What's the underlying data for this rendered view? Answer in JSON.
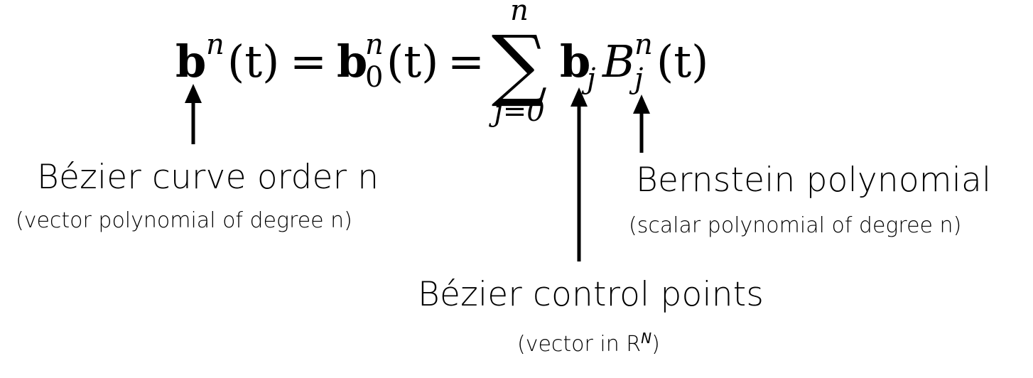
{
  "formula": {
    "lhs_base": "b",
    "lhs_sup": "n",
    "arg": "(t)",
    "equals": "=",
    "mid_base": "b",
    "mid_sup": "n",
    "mid_sub": "0",
    "sum_symbol": "∑",
    "sum_upper": "n",
    "sum_lower": "j=0",
    "term_b": "b",
    "term_b_sub": "j",
    "term_B": "B",
    "term_B_sup": "n",
    "term_B_sub": "j"
  },
  "annotations": {
    "curve_order": {
      "title": "Bézier curve order n",
      "subtitle": "(vector polynomial of degree n)"
    },
    "control_points": {
      "title": "Bézier control points",
      "subtitle_prefix": "(vector in R",
      "subtitle_sup": "N",
      "subtitle_suffix": ")"
    },
    "bernstein": {
      "title": "Bernstein polynomial",
      "subtitle": "(scalar polynomial of degree n)"
    }
  }
}
